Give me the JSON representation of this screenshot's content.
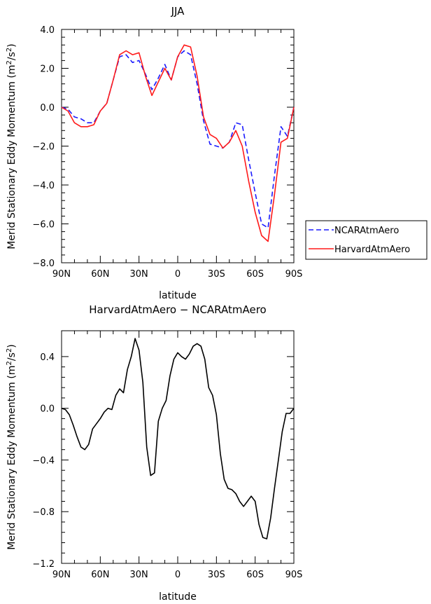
{
  "chart_data": [
    {
      "type": "line",
      "title": "JJA",
      "xlabel": "latitude",
      "ylabel": "Merid Stationary Eddy Momentum",
      "yunit_base": "m",
      "yunit_exp1": "2",
      "yunit_mid": "/s",
      "yunit_exp2": "2",
      "xlim": [
        90,
        -90
      ],
      "ylim": [
        -8.0,
        4.0
      ],
      "xticks": [
        90,
        60,
        30,
        0,
        -30,
        -60,
        -90
      ],
      "xtick_labels": [
        "90N",
        "60N",
        "30N",
        "0",
        "30S",
        "60S",
        "90S"
      ],
      "yticks": [
        4.0,
        2.0,
        0.0,
        -2.0,
        -4.0,
        -6.0,
        -8.0
      ],
      "ytick_labels": [
        "4.0",
        "2.0",
        "0.0",
        "−2.0",
        "−4.0",
        "−6.0",
        "−8.0"
      ],
      "legend": "right",
      "series": [
        {
          "name": "NCARAtmAero",
          "color": "#1a1aff",
          "dash": true,
          "x": [
            90,
            85,
            80,
            75,
            70,
            65,
            60,
            55,
            50,
            45,
            40,
            35,
            30,
            25,
            20,
            15,
            10,
            5,
            0,
            -5,
            -10,
            -15,
            -20,
            -25,
            -30,
            -35,
            -40,
            -45,
            -50,
            -55,
            -60,
            -65,
            -70,
            -75,
            -80,
            -85,
            -90
          ],
          "y": [
            0.0,
            -0.1,
            -0.5,
            -0.6,
            -0.8,
            -0.8,
            -0.2,
            0.2,
            1.4,
            2.6,
            2.7,
            2.3,
            2.4,
            1.7,
            0.9,
            1.5,
            2.2,
            1.4,
            2.6,
            2.9,
            2.7,
            1.2,
            -0.7,
            -1.9,
            -2.0,
            -2.1,
            -1.8,
            -0.8,
            -0.9,
            -2.7,
            -4.4,
            -6.0,
            -6.2,
            -3.5,
            -1.0,
            -1.5,
            0.0
          ]
        },
        {
          "name": "HarvardAtmAero",
          "color": "#ff1a1a",
          "dash": false,
          "x": [
            90,
            85,
            80,
            75,
            70,
            65,
            60,
            55,
            50,
            45,
            40,
            35,
            30,
            25,
            20,
            15,
            10,
            5,
            0,
            -5,
            -10,
            -15,
            -20,
            -25,
            -30,
            -35,
            -40,
            -45,
            -50,
            -55,
            -60,
            -65,
            -70,
            -75,
            -80,
            -85,
            -90
          ],
          "y": [
            0.0,
            -0.2,
            -0.8,
            -1.0,
            -1.0,
            -0.9,
            -0.2,
            0.2,
            1.4,
            2.7,
            2.9,
            2.7,
            2.8,
            1.6,
            0.6,
            1.3,
            2.0,
            1.4,
            2.6,
            3.2,
            3.1,
            1.6,
            -0.5,
            -1.4,
            -1.6,
            -2.1,
            -1.8,
            -1.2,
            -2.0,
            -3.8,
            -5.4,
            -6.6,
            -6.9,
            -4.5,
            -1.8,
            -1.6,
            0.0
          ]
        }
      ]
    },
    {
      "type": "line",
      "title": "HarvardAtmAero − NCARAtmAero",
      "xlabel": "latitude",
      "ylabel": "Merid Stationary Eddy Momentum",
      "yunit_base": "m",
      "yunit_exp1": "2",
      "yunit_mid": "/s",
      "yunit_exp2": "2",
      "xlim": [
        90,
        -90
      ],
      "ylim": [
        -1.2,
        0.6
      ],
      "xticks": [
        90,
        60,
        30,
        0,
        -30,
        -60,
        -90
      ],
      "xtick_labels": [
        "90N",
        "60N",
        "30N",
        "0",
        "30S",
        "60S",
        "90S"
      ],
      "yticks": [
        0.4,
        0.0,
        -0.4,
        -0.8,
        -1.2
      ],
      "ytick_labels": [
        "0.4",
        "0.0",
        "−0.4",
        "−0.8",
        "−1.2"
      ],
      "series": [
        {
          "color": "#000000",
          "dash": false,
          "x": [
            90,
            87,
            84,
            81,
            78,
            75,
            72,
            69,
            66,
            63,
            60,
            57,
            54,
            51,
            48,
            45,
            42,
            39,
            36,
            33,
            30,
            27,
            24,
            21,
            18,
            15,
            12,
            9,
            6,
            3,
            0,
            -3,
            -6,
            -9,
            -12,
            -15,
            -18,
            -21,
            -24,
            -27,
            -30,
            -33,
            -36,
            -39,
            -42,
            -45,
            -48,
            -51,
            -54,
            -57,
            -60,
            -63,
            -66,
            -69,
            -72,
            -75,
            -78,
            -81,
            -84,
            -87,
            -90
          ],
          "y": [
            0.0,
            -0.01,
            -0.05,
            -0.13,
            -0.22,
            -0.3,
            -0.32,
            -0.28,
            -0.16,
            -0.12,
            -0.08,
            -0.03,
            0.0,
            -0.01,
            0.1,
            0.15,
            0.12,
            0.3,
            0.4,
            0.54,
            0.45,
            0.2,
            -0.3,
            -0.52,
            -0.5,
            -0.1,
            0.0,
            0.06,
            0.25,
            0.38,
            0.43,
            0.4,
            0.38,
            0.42,
            0.48,
            0.5,
            0.48,
            0.38,
            0.16,
            0.1,
            -0.05,
            -0.35,
            -0.55,
            -0.62,
            -0.63,
            -0.66,
            -0.72,
            -0.76,
            -0.72,
            -0.68,
            -0.72,
            -0.9,
            -1.0,
            -1.01,
            -0.85,
            -0.62,
            -0.4,
            -0.18,
            -0.04,
            -0.04,
            0.0
          ]
        }
      ]
    }
  ]
}
